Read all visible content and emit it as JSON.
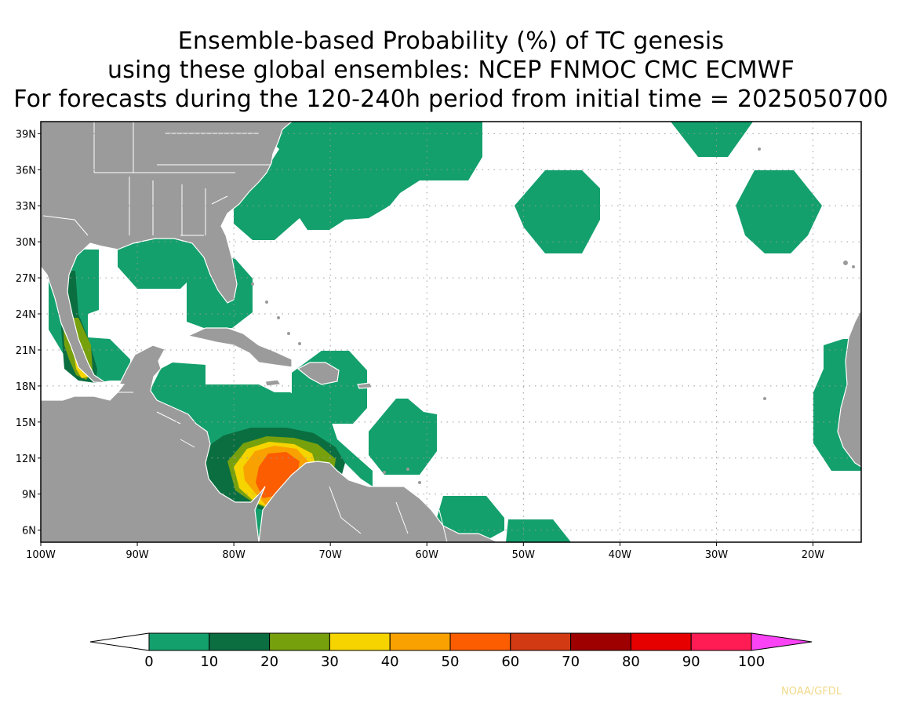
{
  "title": {
    "line1": "Ensemble-based Probability (%) of TC genesis",
    "line2": "using these global ensembles:   NCEP FNMOC CMC ECMWF",
    "line3": "For forecasts during the 120-240h period from initial time = 2025050700"
  },
  "map": {
    "lon_range": [
      -100,
      -15
    ],
    "lat_range": [
      5,
      40
    ],
    "lat_ticks": [
      "39N",
      "36N",
      "33N",
      "30N",
      "27N",
      "24N",
      "21N",
      "18N",
      "15N",
      "12N",
      "9N",
      "6N"
    ],
    "lon_ticks": [
      "100W",
      "90W",
      "80W",
      "70W",
      "60W",
      "50W",
      "40W",
      "30W",
      "20W"
    ],
    "grid": "dotted",
    "land_color": "#9b9b9b",
    "ocean_color": "#ffffff"
  },
  "colorbar": {
    "labels": [
      "0",
      "10",
      "20",
      "30",
      "40",
      "50",
      "60",
      "70",
      "80",
      "90",
      "100"
    ],
    "colors": [
      "#13a06d",
      "#0b6e40",
      "#77a00d",
      "#f5d400",
      "#f9a100",
      "#fc5d00",
      "#d23a14",
      "#9e0000",
      "#e60000",
      "#ff1c54",
      "#fa43f5"
    ],
    "left_extension_color": "#ffffff",
    "right_extension_color": "#fa43f5"
  },
  "credit": "NOAA/GFDL"
}
